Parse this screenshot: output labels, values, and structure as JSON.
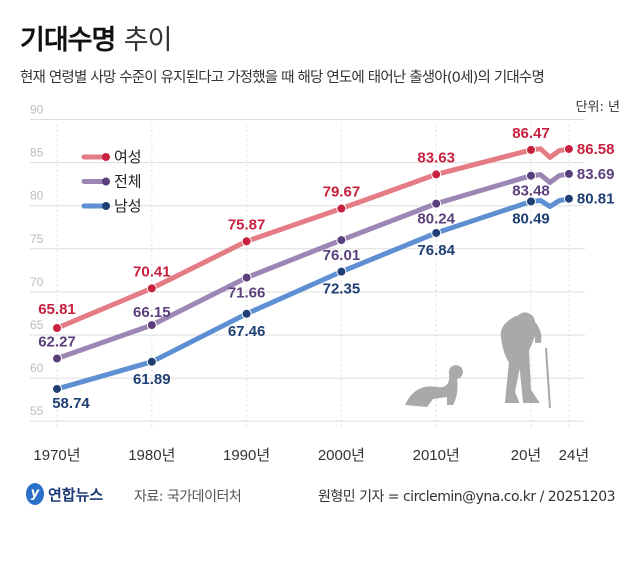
{
  "header": {
    "title_bold": "기대수명",
    "title_light": "추이",
    "subtitle": "현재 연령별 사망 수준이 유지된다고 가정했을 때 해당 연도에 태어난 출생아(0세)의 기대수명",
    "unit": "단위: 년"
  },
  "footer": {
    "logo": "연합뉴스",
    "source": "자료: 국가데이터처",
    "credit": "원형민 기자 = circlemin@yna.co.kr / 20251203"
  },
  "chart_data": {
    "type": "line",
    "title": "기대수명 추이",
    "ylabel": "년",
    "ylim": [
      55,
      90
    ],
    "yticks": [
      90,
      85,
      80,
      75,
      70,
      65,
      60,
      55
    ],
    "xlim": [
      1970,
      2024
    ],
    "xticks": [
      {
        "x": 1970,
        "label": "1970년"
      },
      {
        "x": 1980,
        "label": "1980년"
      },
      {
        "x": 1990,
        "label": "1990년"
      },
      {
        "x": 2000,
        "label": "2000년"
      },
      {
        "x": 2010,
        "label": "2010년"
      },
      {
        "x": 2020,
        "label": "20년"
      },
      {
        "x": 2024,
        "label": "24년"
      }
    ],
    "grid": true,
    "legend_position": "top-left",
    "x": [
      1970,
      1980,
      1990,
      2000,
      2010,
      2020,
      2021,
      2022,
      2023,
      2024
    ],
    "series": [
      {
        "name": "여성",
        "color": "#e57c85",
        "label_color": "#c8203f",
        "values": [
          65.81,
          70.41,
          75.87,
          79.67,
          83.63,
          86.47,
          86.6,
          85.6,
          86.4,
          86.58
        ]
      },
      {
        "name": "전체",
        "color": "#9c86b4",
        "label_color": "#5b3f7c",
        "values": [
          62.27,
          66.15,
          71.66,
          76.01,
          80.24,
          83.48,
          83.6,
          82.7,
          83.5,
          83.69
        ]
      },
      {
        "name": "남성",
        "color": "#5d8fd2",
        "label_color": "#1f3f74",
        "values": [
          58.74,
          61.89,
          67.46,
          72.35,
          76.84,
          80.49,
          80.6,
          79.9,
          80.6,
          80.81
        ]
      }
    ],
    "labeled_years": [
      1970,
      1980,
      1990,
      2000,
      2010,
      2020,
      2024
    ]
  }
}
